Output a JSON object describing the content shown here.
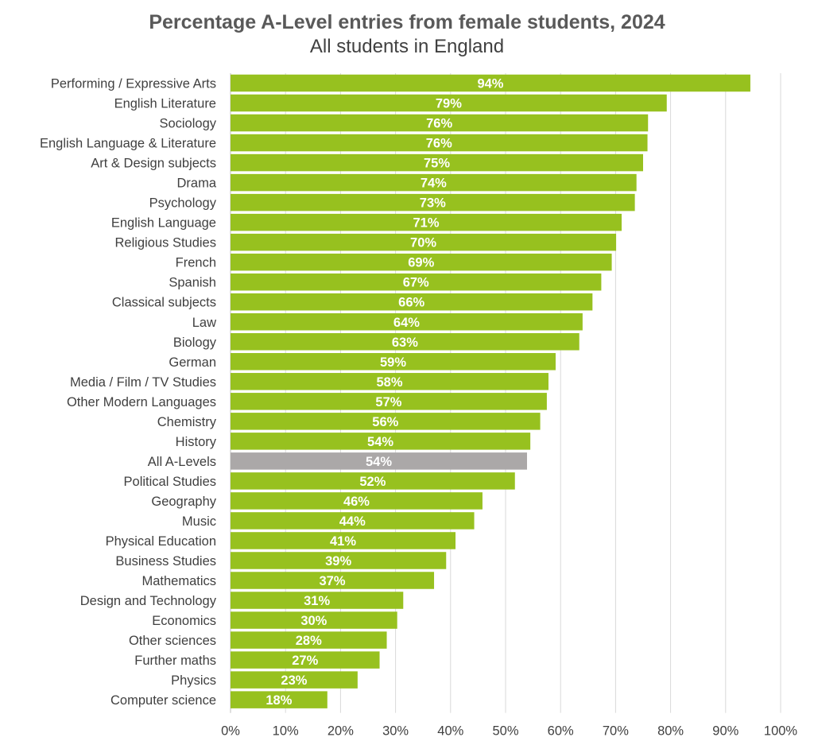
{
  "chart_data": {
    "type": "bar",
    "orientation": "horizontal",
    "title": "Percentage A-Level entries from female students, 2024",
    "subtitle": "All students in England",
    "xlim": [
      0,
      100
    ],
    "x_ticks": [
      "0%",
      "10%",
      "20%",
      "30%",
      "40%",
      "50%",
      "60%",
      "70%",
      "80%",
      "90%",
      "100%"
    ],
    "grid": "vertical",
    "legend": "none",
    "colors": {
      "bar": "#97C11F",
      "highlight": "#ABA8A8"
    },
    "categories": [
      "Performing / Expressive Arts",
      "English Literature",
      "Sociology",
      "English Language & Literature",
      "Art & Design subjects",
      "Drama",
      "Psychology",
      "English Language",
      "Religious Studies",
      "French",
      "Spanish",
      "Classical subjects",
      "Law",
      "Biology",
      "German",
      "Media / Film / TV Studies",
      "Other Modern Languages",
      "Chemistry",
      "History",
      "All A-Levels",
      "Political Studies",
      "Geography",
      "Music",
      "Physical Education",
      "Business Studies",
      "Mathematics",
      "Design and Technology",
      "Economics",
      "Other sciences",
      "Further maths",
      "Physics",
      "Computer science"
    ],
    "values": [
      94.5,
      79.3,
      75.9,
      75.8,
      75.0,
      73.8,
      73.5,
      71.1,
      70.1,
      69.3,
      67.4,
      65.8,
      64.0,
      63.4,
      59.1,
      57.8,
      57.5,
      56.3,
      54.5,
      53.9,
      51.7,
      45.8,
      44.3,
      40.9,
      39.2,
      37.0,
      31.4,
      30.3,
      28.4,
      27.1,
      23.1,
      17.6
    ],
    "labels": [
      "94%",
      "79%",
      "76%",
      "76%",
      "75%",
      "74%",
      "73%",
      "71%",
      "70%",
      "69%",
      "67%",
      "66%",
      "64%",
      "63%",
      "59%",
      "58%",
      "57%",
      "56%",
      "54%",
      "54%",
      "52%",
      "46%",
      "44%",
      "41%",
      "39%",
      "37%",
      "31%",
      "30%",
      "28%",
      "27%",
      "23%",
      "18%"
    ],
    "highlight_category": "All A-Levels"
  }
}
